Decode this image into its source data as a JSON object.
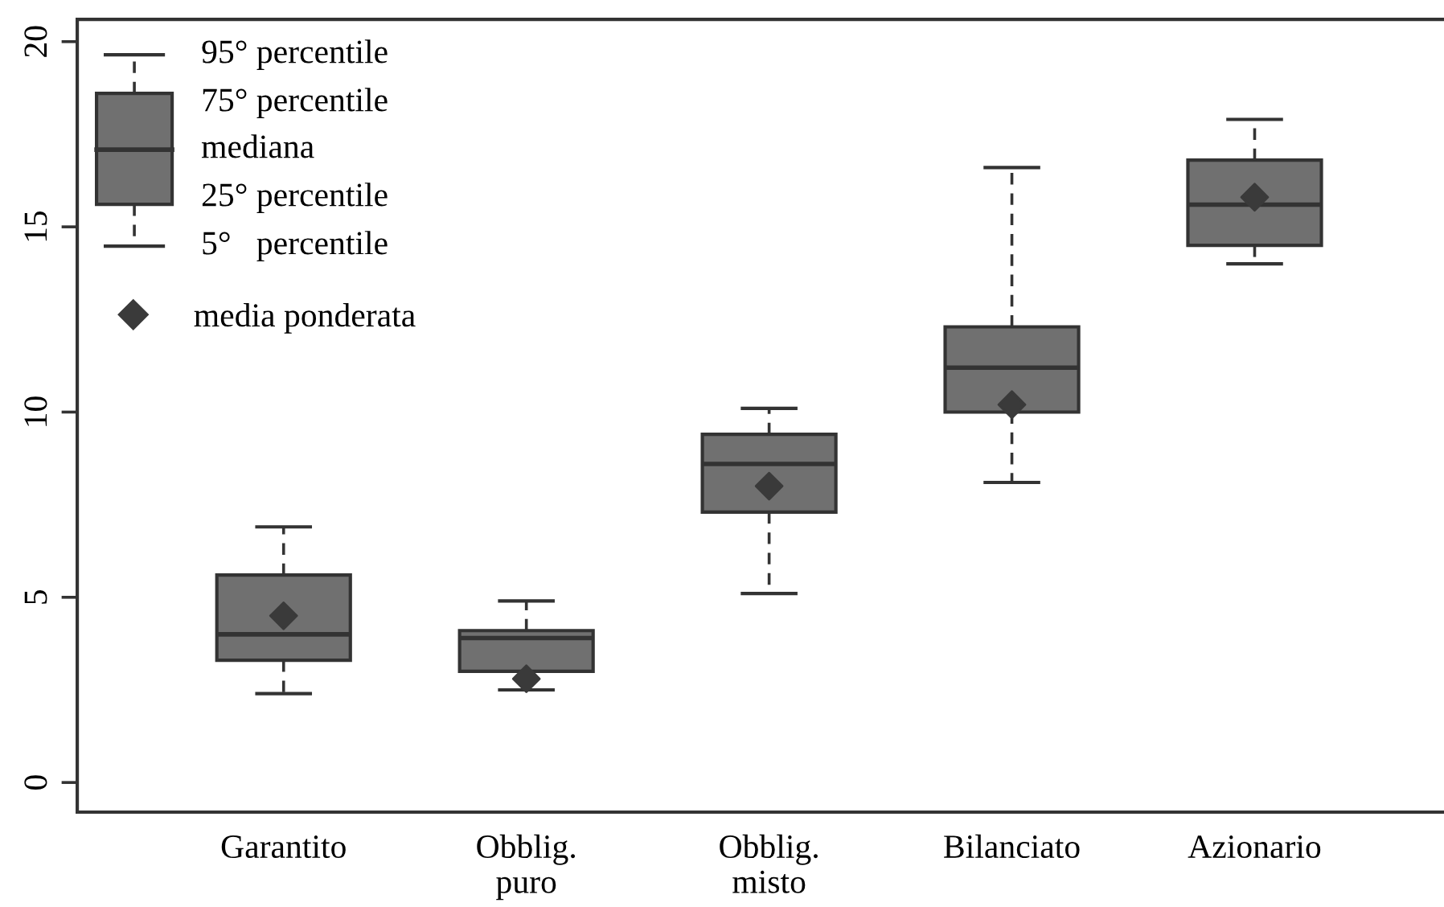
{
  "chart_data": {
    "type": "box",
    "categories": [
      "Garantito",
      "Obblig.\npuro",
      "Obblig.\nmisto",
      "Bilanciato",
      "Azionario"
    ],
    "boxes": [
      {
        "low": 2.4,
        "q1": 3.3,
        "median": 4.0,
        "q3": 5.6,
        "high": 6.9
      },
      {
        "low": 2.5,
        "q1": 3.0,
        "median": 3.9,
        "q3": 4.1,
        "high": 4.9
      },
      {
        "low": 5.1,
        "q1": 7.3,
        "median": 8.6,
        "q3": 9.4,
        "high": 10.1
      },
      {
        "low": 8.1,
        "q1": 10.0,
        "median": 11.2,
        "q3": 12.3,
        "high": 16.6
      },
      {
        "low": 14.0,
        "q1": 14.5,
        "median": 15.6,
        "q3": 16.8,
        "high": 17.9
      }
    ],
    "color": "#707070",
    "series": [
      {
        "type": "scatter",
        "name": "media ponderata",
        "color": "#3a3a3a",
        "marker": "diamond",
        "x": [
          "Garantito",
          "Obblig.\npuro",
          "Obblig.\nmisto",
          "Bilanciato",
          "Azionario"
        ],
        "values": [
          4.5,
          2.8,
          8.0,
          10.2,
          15.8
        ]
      }
    ],
    "annotations": [
      "95° percentile",
      "75° percentile",
      "mediana",
      "25° percentile",
      "5°   percentile"
    ],
    "ylim": [
      -0.8,
      20.6
    ],
    "yticks": [
      0,
      5,
      10,
      15,
      20
    ],
    "line_style": "dashed",
    "grid": false,
    "legend": "top left"
  }
}
